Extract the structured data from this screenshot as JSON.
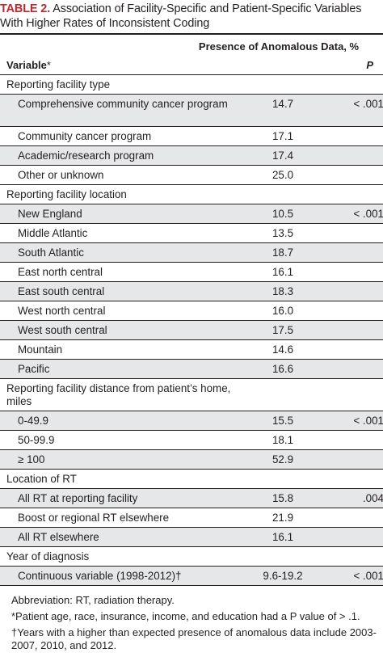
{
  "title": {
    "label": "TABLE 2.",
    "text": "Association of Facility-Specific and Patient-Specific Variables With Higher Rates of Inconsistent Coding"
  },
  "header": {
    "variable": "Variable",
    "variable_mark": "*",
    "presence": "Presence of Anomalous Data, %",
    "p": "P"
  },
  "rows": [
    {
      "type": "group",
      "label": "Reporting facility type",
      "value": "",
      "p": ""
    },
    {
      "type": "item",
      "label": "Comprehensive community cancer program",
      "value": "14.7",
      "p": "< .001",
      "lines": 2
    },
    {
      "type": "item",
      "label": "Community cancer program",
      "value": "17.1",
      "p": ""
    },
    {
      "type": "item",
      "label": "Academic/research program",
      "value": "17.4",
      "p": ""
    },
    {
      "type": "item",
      "label": "Other or unknown",
      "value": "25.0",
      "p": ""
    },
    {
      "type": "group",
      "label": "Reporting facility location",
      "value": "",
      "p": ""
    },
    {
      "type": "item",
      "label": "New England",
      "value": "10.5",
      "p": "< .001"
    },
    {
      "type": "item",
      "label": "Middle Atlantic",
      "value": "13.5",
      "p": ""
    },
    {
      "type": "item",
      "label": "South Atlantic",
      "value": "18.7",
      "p": ""
    },
    {
      "type": "item",
      "label": "East north central",
      "value": "16.1",
      "p": ""
    },
    {
      "type": "item",
      "label": "East south central",
      "value": "18.3",
      "p": ""
    },
    {
      "type": "item",
      "label": "West north central",
      "value": "16.0",
      "p": ""
    },
    {
      "type": "item",
      "label": "West south central",
      "value": "17.5",
      "p": ""
    },
    {
      "type": "item",
      "label": "Mountain",
      "value": "14.6",
      "p": ""
    },
    {
      "type": "item",
      "label": "Pacific",
      "value": "16.6",
      "p": ""
    },
    {
      "type": "group",
      "label": "Reporting facility distance from patient’s home, miles",
      "value": "",
      "p": "",
      "lines": 2
    },
    {
      "type": "item",
      "label": "0-49.9",
      "value": "15.5",
      "p": "< .001"
    },
    {
      "type": "item",
      "label": "50-99.9",
      "value": "18.1",
      "p": ""
    },
    {
      "type": "item",
      "label": "≥ 100",
      "value": "52.9",
      "p": ""
    },
    {
      "type": "group",
      "label": "Location of RT",
      "value": "",
      "p": ""
    },
    {
      "type": "item",
      "label": "All RT at reporting facility",
      "value": "15.8",
      "p": ".004"
    },
    {
      "type": "item",
      "label": "Boost or regional RT elsewhere",
      "value": "21.9",
      "p": ""
    },
    {
      "type": "item",
      "label": "All RT elsewhere",
      "value": "16.1",
      "p": ""
    },
    {
      "type": "group",
      "label": "Year of diagnosis",
      "value": "",
      "p": ""
    },
    {
      "type": "item",
      "label": "Continuous variable (1998-2012)†",
      "value": "9.6-19.2",
      "p": "< .001"
    }
  ],
  "notes": [
    "Abbreviation: RT, radiation therapy.",
    "*Patient age, race, insurance, income, and education had a P value of > .1.",
    "†Years with a higher than expected presence of anomalous data include 2003-2007, 2010, and 2012."
  ]
}
